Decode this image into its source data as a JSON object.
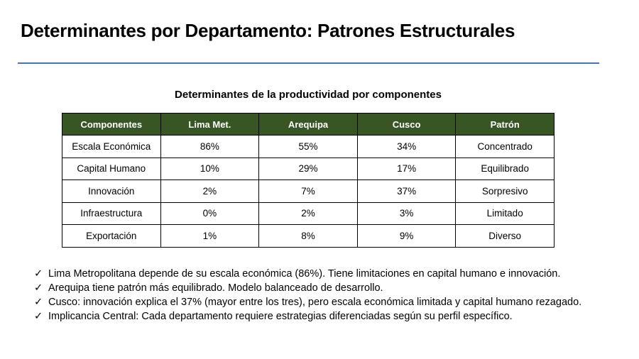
{
  "slide": {
    "title": "Determinantes por Departamento: Patrones Estructurales",
    "accent_line_color": "#4472C4"
  },
  "table": {
    "title": "Determinantes de la productividad por componentes",
    "header_color": "#375623",
    "headers": [
      "Componentes",
      "Lima Met.",
      "Arequipa",
      "Cusco",
      "Patrón"
    ],
    "rows": [
      [
        "Escala Económica",
        "86%",
        "55%",
        "34%",
        "Concentrado"
      ],
      [
        "Capital Humano",
        "10%",
        "29%",
        "17%",
        "Equilibrado"
      ],
      [
        "Innovación",
        "2%",
        "7%",
        "37%",
        "Sorpresivo"
      ],
      [
        "Infraestructura",
        "0%",
        "2%",
        "3%",
        "Limitado"
      ],
      [
        "Exportación",
        "1%",
        "8%",
        "9%",
        "Diverso"
      ]
    ]
  },
  "bullets": {
    "icon": "check-icon",
    "items": [
      "Lima Metropolitana depende de su escala económica (86%). Tiene limitaciones en capital humano e innovación.",
      "Arequipa tiene patrón más equilibrado. Modelo balanceado de desarrollo.",
      "Cusco: innovación explica el 37% (mayor entre los tres), pero escala económica limitada y capital humano rezagado.",
      "Implicancia Central: Cada departamento requiere estrategias diferenciadas según su perfil específico."
    ]
  }
}
